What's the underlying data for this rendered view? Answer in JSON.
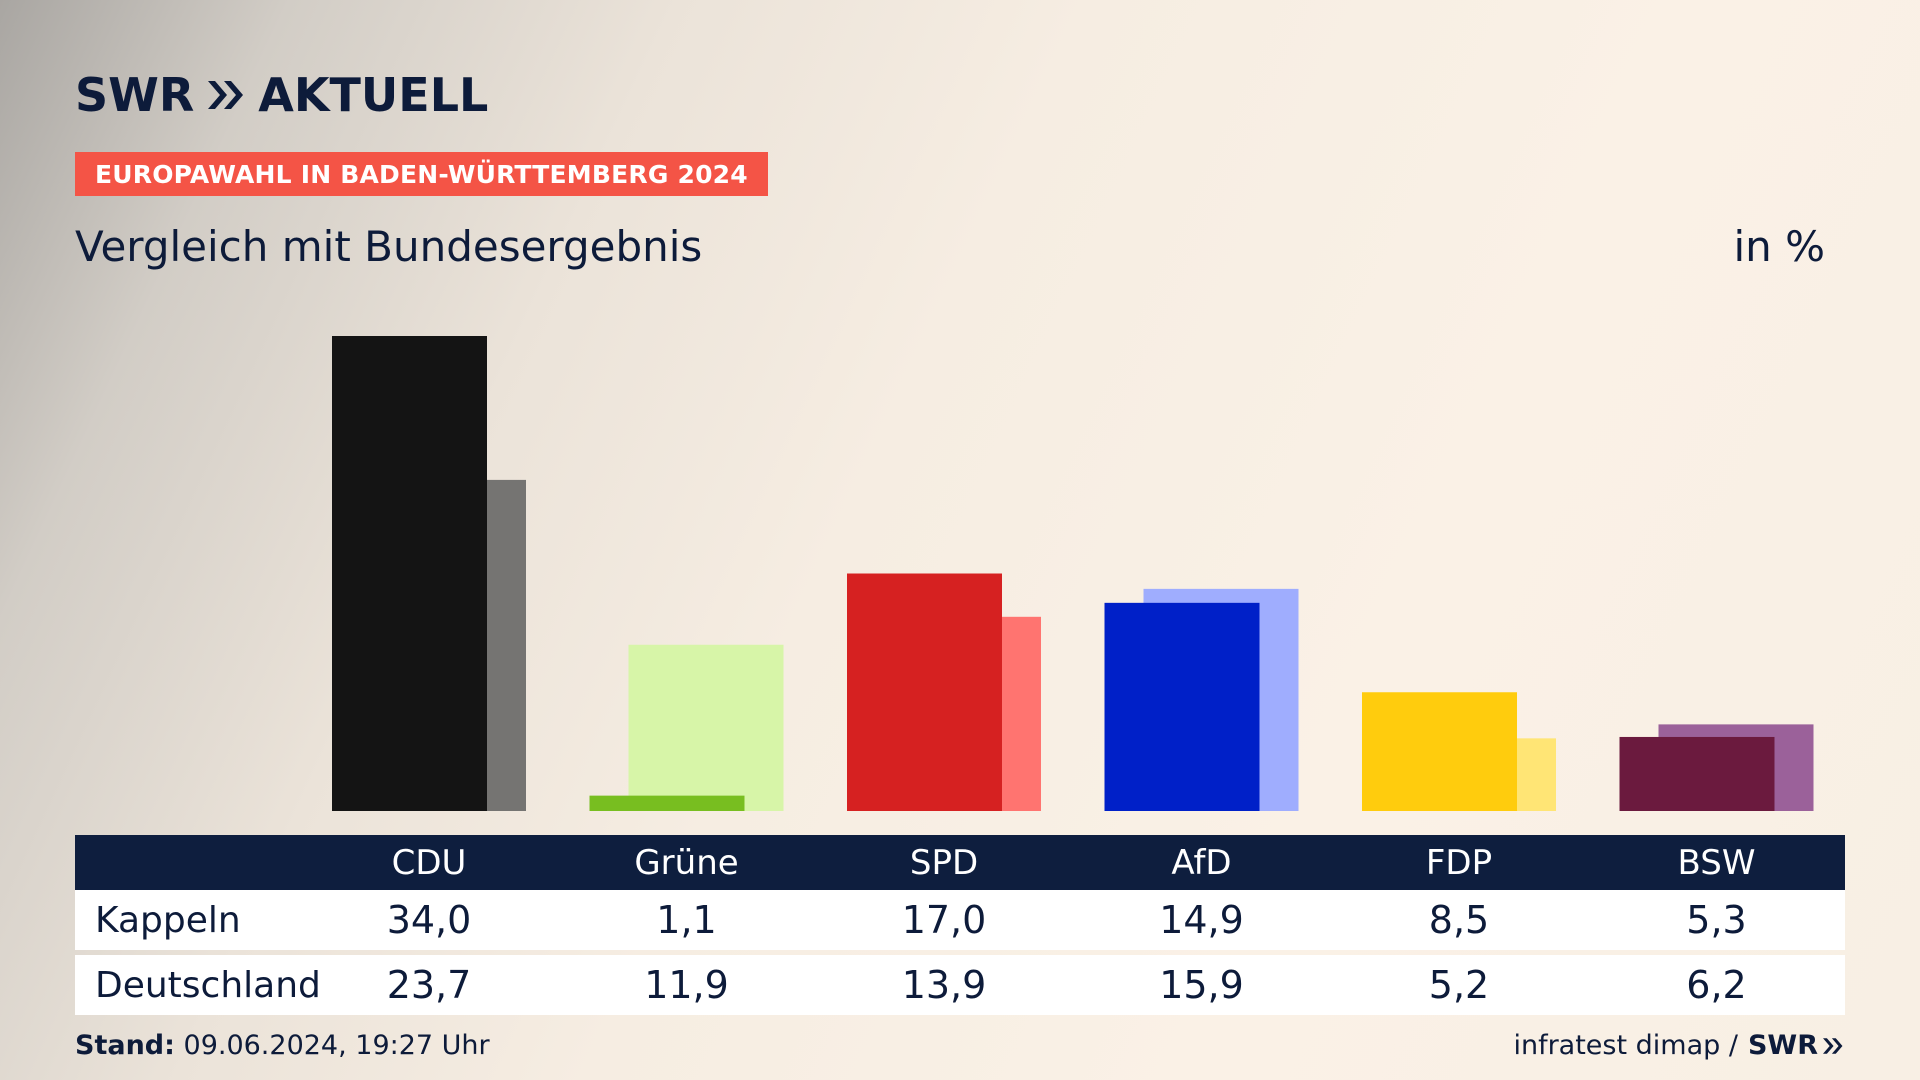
{
  "brand": {
    "logo_part1": "SWR",
    "logo_part2": "AKTUELL",
    "footer_logo": "SWR"
  },
  "header": {
    "badge": "EUROPAWAHL IN BADEN-WÜRTTEMBERG 2024",
    "subtitle": "Vergleich mit Bundesergebnis",
    "unit": "in %"
  },
  "chart_data": {
    "type": "bar",
    "categories": [
      "CDU",
      "Grüne",
      "SPD",
      "AfD",
      "FDP",
      "BSW"
    ],
    "series": [
      {
        "name": "Kappeln",
        "values": [
          34.0,
          1.1,
          17.0,
          14.9,
          8.5,
          5.3
        ]
      },
      {
        "name": "Deutschland",
        "values": [
          23.7,
          11.9,
          13.9,
          15.9,
          5.2,
          6.2
        ]
      }
    ],
    "colors_primary": [
      "#141414",
      "#78be20",
      "#d62121",
      "#0020c8",
      "#ffcc0d",
      "#6b1a3e"
    ],
    "colors_secondary": [
      "#757472",
      "#d7f5a8",
      "#ff7470",
      "#9fadfe",
      "#ffe575",
      "#9b619a"
    ],
    "ylim": [
      0,
      34
    ]
  },
  "table": {
    "rows": [
      {
        "label": "Kappeln",
        "values": [
          "34,0",
          "1,1",
          "17,0",
          "14,9",
          "8,5",
          "5,3"
        ]
      },
      {
        "label": "Deutschland",
        "values": [
          "23,7",
          "11,9",
          "13,9",
          "15,9",
          "5,2",
          "6,2"
        ]
      }
    ]
  },
  "footer": {
    "stand_label": "Stand:",
    "stand_value": "09.06.2024, 19:27 Uhr",
    "source": "infratest dimap /"
  },
  "colors": {
    "navy": "#0d1b3a",
    "badge_red": "#f45446"
  }
}
